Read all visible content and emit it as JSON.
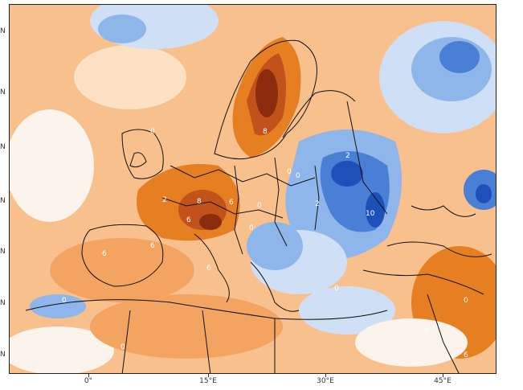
{
  "map": {
    "colors": {
      "warm_light": "#f9c99a",
      "warm_mid": "#f3a460",
      "warm_strong": "#e67e22",
      "warm_deep": "#c0521a",
      "warm_extreme": "#8b2c0c",
      "cool_light": "#cfe0f6",
      "cool_mid": "#8fb6ea",
      "cool_strong": "#4a7fd6",
      "cool_deep": "#1f4fb8",
      "land_border": "#111111",
      "neutral": "#fbf4ec"
    },
    "y_axis_labels": [
      "N",
      "N",
      "N",
      "N",
      "N",
      "N",
      "N"
    ],
    "x_axis_labels": [
      "0°",
      "15°E",
      "30°E",
      "45°E"
    ],
    "contour_labels": [
      "8",
      "2",
      "8",
      "6",
      "6",
      "0",
      "0",
      "2",
      "2",
      "0",
      "10",
      "0",
      "6",
      "0",
      "6",
      "0",
      "0",
      "0",
      "0",
      "0",
      "6",
      "6"
    ]
  }
}
